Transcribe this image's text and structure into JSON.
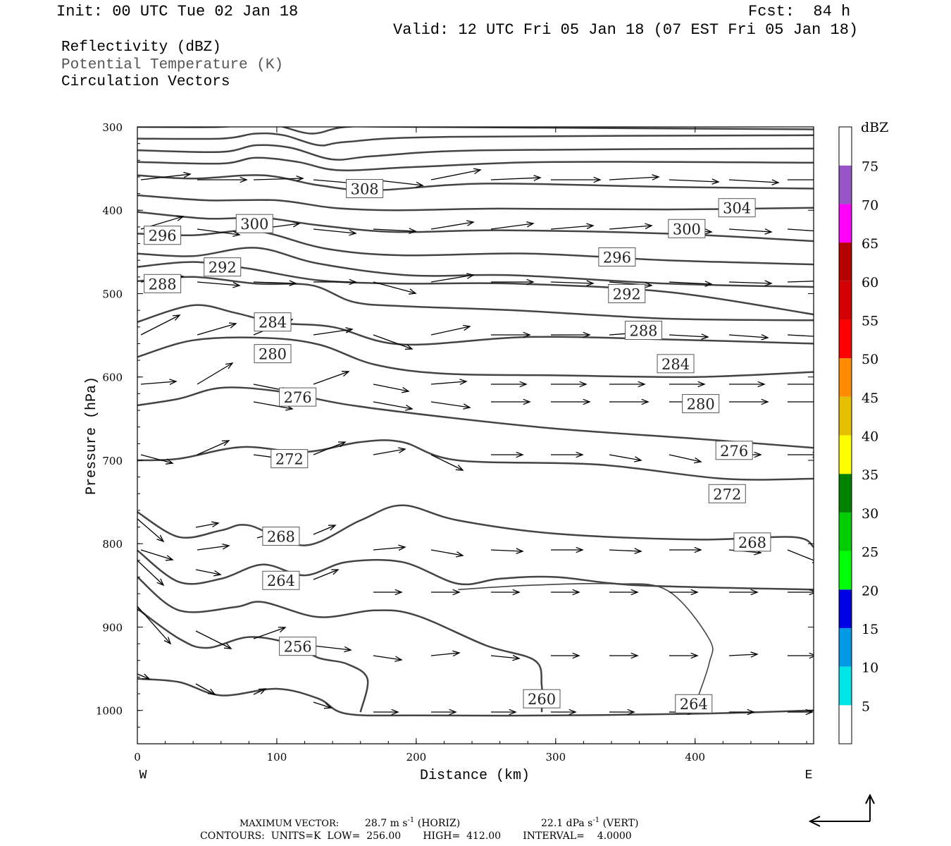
{
  "header": {
    "init": "Init: 00 UTC Tue 02 Jan 18",
    "fcst": "Fcst:  84 h",
    "valid": "Valid: 12 UTC Fri 05 Jan 18 (07 EST Fri 05 Jan 18)"
  },
  "legend": {
    "reflectivity": "Reflectivity (dBZ)",
    "theta": "Potential Temperature (K)",
    "vectors": "Circulation Vectors"
  },
  "footer": {
    "max_vector_label": "MAXIMUM VECTOR:",
    "horiz_value": "28.7 m s",
    "horiz_unit": "(HORIZ)",
    "vert_value": "22.1 dPa s",
    "vert_unit": "(VERT)",
    "exponent": "-1",
    "contours": "CONTOURS:  UNITS=K  LOW=  256.00       HIGH=  412.00       INTERVAL=    4.0000"
  },
  "colorbar": {
    "unit": "dBZ",
    "levels": [
      "5",
      "10",
      "15",
      "20",
      "25",
      "30",
      "35",
      "40",
      "45",
      "50",
      "55",
      "60",
      "65",
      "70",
      "75"
    ],
    "colors": [
      "#ffffff",
      "#00e5e5",
      "#0099e5",
      "#0000e5",
      "#00ff00",
      "#00cc00",
      "#008000",
      "#ffff00",
      "#e5c000",
      "#ff8c00",
      "#ff0000",
      "#d20000",
      "#b40000",
      "#ff00ff",
      "#9955c8",
      "#ffffff"
    ]
  },
  "chart_data": {
    "type": "cross-section",
    "xlabel": "Distance (km)",
    "ylabel": "Pressure (hPa)",
    "x_ticks": [
      "0",
      "100",
      "200",
      "300",
      "400"
    ],
    "y_ticks": [
      "300",
      "400",
      "500",
      "600",
      "700",
      "800",
      "900",
      "1000"
    ],
    "xlim": [
      0,
      485
    ],
    "ylim": [
      300,
      1040
    ],
    "y_reversed": true,
    "left_end": "W",
    "right_end": "E",
    "contour_interval": 4,
    "contour_labels": [
      {
        "value": "308",
        "x": 163,
        "p": 374
      },
      {
        "value": "304",
        "x": 430,
        "p": 397
      },
      {
        "value": "300",
        "x": 84,
        "p": 416
      },
      {
        "value": "300",
        "x": 394,
        "p": 422
      },
      {
        "value": "296",
        "x": 18,
        "p": 430
      },
      {
        "value": "296",
        "x": 344,
        "p": 456
      },
      {
        "value": "292",
        "x": 61,
        "p": 468
      },
      {
        "value": "292",
        "x": 351,
        "p": 500
      },
      {
        "value": "288",
        "x": 18,
        "p": 488
      },
      {
        "value": "288",
        "x": 363,
        "p": 544
      },
      {
        "value": "284",
        "x": 97,
        "p": 534
      },
      {
        "value": "284",
        "x": 386,
        "p": 584
      },
      {
        "value": "280",
        "x": 97,
        "p": 572
      },
      {
        "value": "280",
        "x": 404,
        "p": 632
      },
      {
        "value": "276",
        "x": 115,
        "p": 624
      },
      {
        "value": "276",
        "x": 428,
        "p": 688
      },
      {
        "value": "272",
        "x": 109,
        "p": 698
      },
      {
        "value": "272",
        "x": 423,
        "p": 740
      },
      {
        "value": "268",
        "x": 103,
        "p": 791
      },
      {
        "value": "268",
        "x": 441,
        "p": 798
      },
      {
        "value": "264",
        "x": 103,
        "p": 844
      },
      {
        "value": "264",
        "x": 399,
        "p": 992
      },
      {
        "value": "256",
        "x": 115,
        "p": 923
      },
      {
        "value": "260",
        "x": 290,
        "p": 986
      }
    ]
  }
}
